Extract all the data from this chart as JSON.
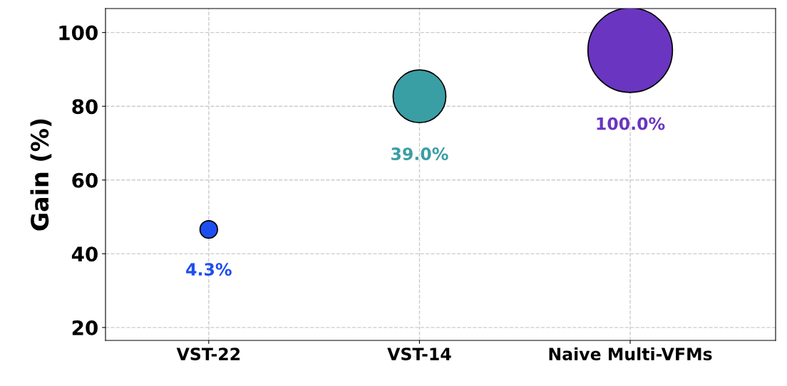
{
  "chart_data": {
    "type": "bubble",
    "ylabel": "Gain (%)",
    "categories": [
      "VST-22",
      "VST-14",
      "Naive Multi-VFMs"
    ],
    "values": [
      46.6,
      82.7,
      95.2
    ],
    "sizes": [
      0.043,
      0.39,
      1.0
    ],
    "colors": [
      "#1f4ef0",
      "#3a9ea5",
      "#6a35c0"
    ],
    "value_labels": [
      "4.3%",
      "39.0%",
      "100.0%"
    ],
    "ylim": [
      16.5,
      106.5
    ],
    "yticks": [
      20,
      40,
      60,
      80,
      100
    ],
    "grid": true
  }
}
